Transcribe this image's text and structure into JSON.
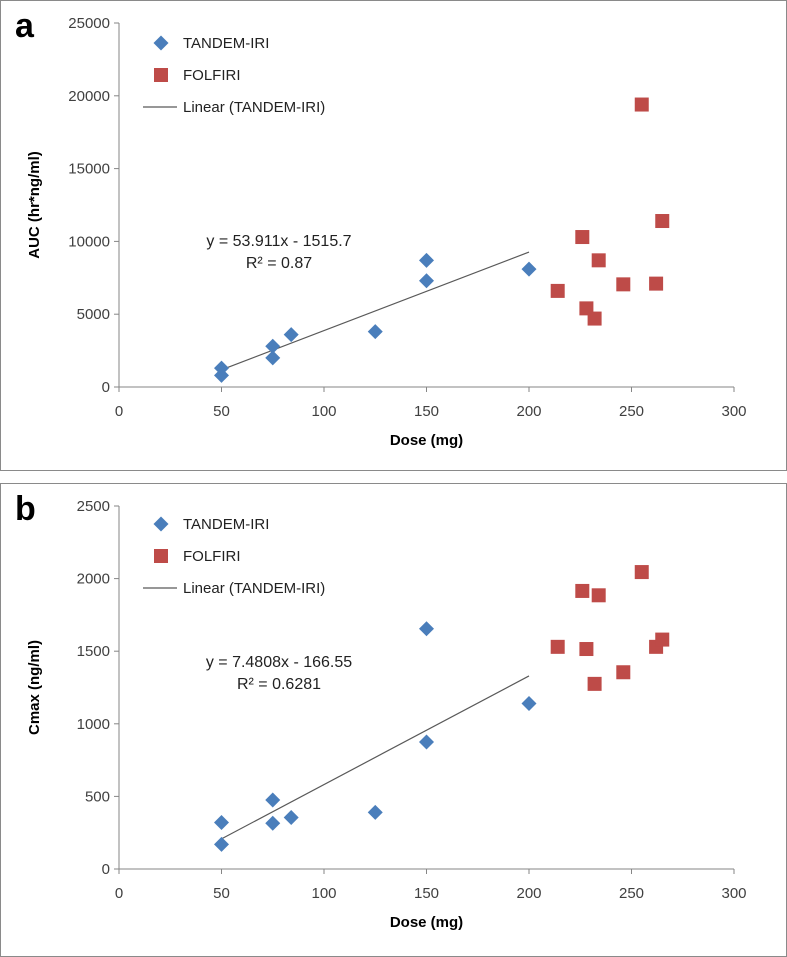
{
  "chart_data": [
    {
      "panel": "a",
      "type": "scatter",
      "xlabel": "Dose (mg)",
      "ylabel": "AUC (hr*ng/ml)",
      "xlim": [
        0,
        300
      ],
      "ylim": [
        0,
        25000
      ],
      "xticks": [
        0,
        50,
        100,
        150,
        200,
        250,
        300
      ],
      "yticks": [
        0,
        5000,
        10000,
        15000,
        20000,
        25000
      ],
      "legend": [
        "TANDEM-IRI",
        "FOLFIRI",
        "Linear (TANDEM-IRI)"
      ],
      "series": [
        {
          "name": "TANDEM-IRI",
          "marker": "diamond",
          "color": "#4a7ebb",
          "x": [
            50,
            50,
            75,
            75,
            84,
            125,
            150,
            150,
            200
          ],
          "y": [
            1300,
            800,
            2800,
            2000,
            3600,
            3800,
            7300,
            8700,
            8100
          ]
        },
        {
          "name": "FOLFIRI",
          "marker": "square",
          "color": "#be4b48",
          "x": [
            214,
            226,
            228,
            232,
            234,
            246,
            255,
            262,
            265
          ],
          "y": [
            6600,
            10300,
            5400,
            4700,
            8700,
            7050,
            19400,
            7100,
            11400
          ]
        }
      ],
      "trendline": {
        "name": "Linear (TANDEM-IRI)",
        "slope": 53.911,
        "intercept": -1515.7,
        "x_range": [
          50,
          200
        ],
        "color": "#595959"
      },
      "equation": "y = 53.911x - 1515.7",
      "r_squared": "R² = 0.87"
    },
    {
      "panel": "b",
      "type": "scatter",
      "xlabel": "Dose (mg)",
      "ylabel": "Cmax (ng/ml)",
      "xlim": [
        0,
        300
      ],
      "ylim": [
        0,
        2500
      ],
      "xticks": [
        0,
        50,
        100,
        150,
        200,
        250,
        300
      ],
      "yticks": [
        0,
        500,
        1000,
        1500,
        2000,
        2500
      ],
      "legend": [
        "TANDEM-IRI",
        "FOLFIRI",
        "Linear (TANDEM-IRI)"
      ],
      "series": [
        {
          "name": "TANDEM-IRI",
          "marker": "diamond",
          "color": "#4a7ebb",
          "x": [
            50,
            50,
            75,
            75,
            84,
            125,
            150,
            150,
            200
          ],
          "y": [
            320,
            170,
            475,
            315,
            355,
            390,
            1655,
            875,
            1140
          ]
        },
        {
          "name": "FOLFIRI",
          "marker": "square",
          "color": "#be4b48",
          "x": [
            214,
            226,
            228,
            232,
            234,
            246,
            255,
            262,
            265
          ],
          "y": [
            1530,
            1915,
            1515,
            1275,
            1885,
            1355,
            2045,
            1530,
            1580
          ]
        }
      ],
      "trendline": {
        "name": "Linear (TANDEM-IRI)",
        "slope": 7.4808,
        "intercept": -166.55,
        "x_range": [
          50,
          200
        ],
        "color": "#595959"
      },
      "equation": "y = 7.4808x - 166.55",
      "r_squared": "R² = 0.6281"
    }
  ],
  "panel_labels": [
    "a",
    "b"
  ]
}
